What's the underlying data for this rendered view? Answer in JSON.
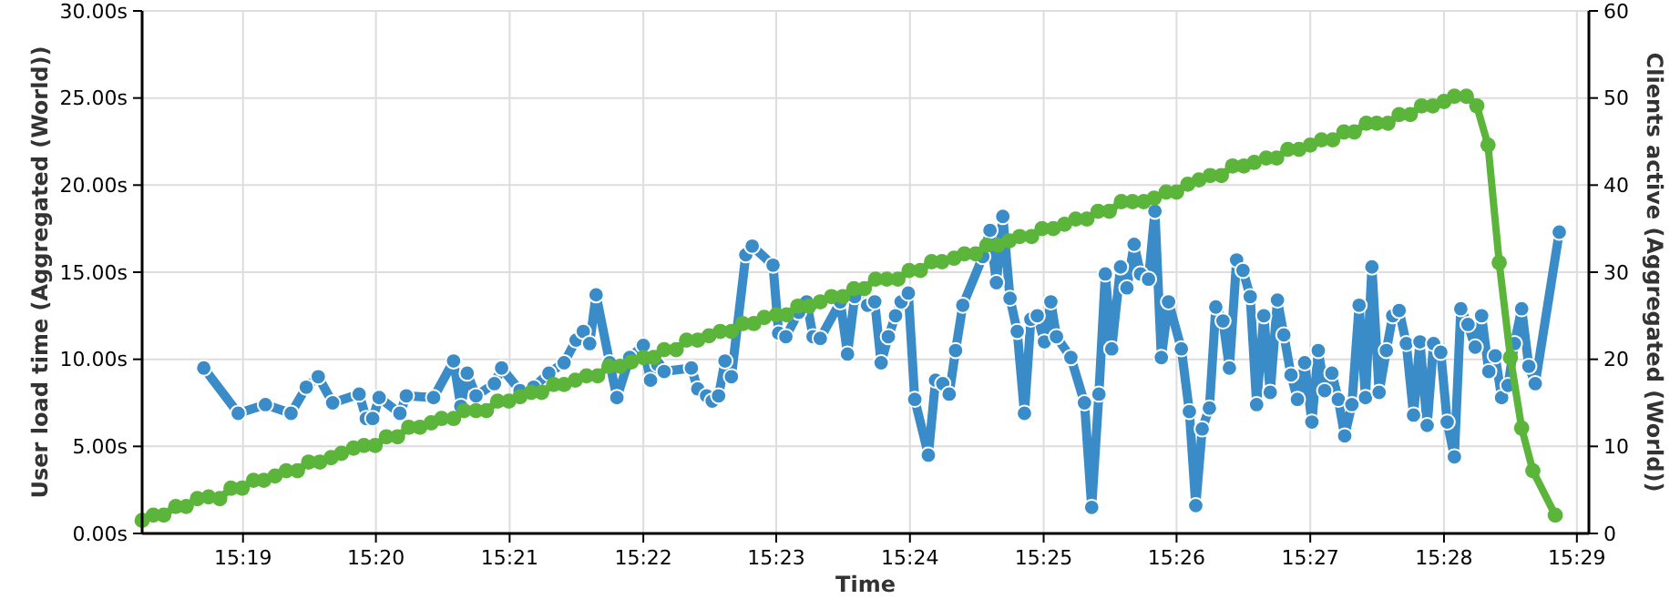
{
  "chart_data": {
    "type": "line",
    "xlabel": "Time",
    "ylabel": "User load time (Aggregated (World))",
    "y2label": "Clients active (Aggregated (World))",
    "grid": true,
    "marker": "circle",
    "line_style": "solid",
    "xlim": [
      15.3041,
      15.4848
    ],
    "xticks": [
      {
        "value": 15.3167,
        "label": "15:19"
      },
      {
        "value": 15.3333,
        "label": "15:20"
      },
      {
        "value": 15.35,
        "label": "15:21"
      },
      {
        "value": 15.3667,
        "label": "15:22"
      },
      {
        "value": 15.3833,
        "label": "15:23"
      },
      {
        "value": 15.4,
        "label": "15:24"
      },
      {
        "value": 15.4167,
        "label": "15:25"
      },
      {
        "value": 15.4333,
        "label": "15:26"
      },
      {
        "value": 15.45,
        "label": "15:27"
      },
      {
        "value": 15.4667,
        "label": "15:28"
      },
      {
        "value": 15.4833,
        "label": "15:29"
      }
    ],
    "ylim": [
      0,
      30
    ],
    "yticks": [
      {
        "value": 0,
        "label": "0.00s"
      },
      {
        "value": 5,
        "label": "5.00s"
      },
      {
        "value": 10,
        "label": "10.00s"
      },
      {
        "value": 15,
        "label": "15.00s"
      },
      {
        "value": 20,
        "label": "20.00s"
      },
      {
        "value": 25,
        "label": "25.00s"
      },
      {
        "value": 30,
        "label": "30.00s"
      }
    ],
    "y2lim": [
      0,
      60
    ],
    "y2ticks": [
      0,
      10,
      20,
      30,
      40,
      50,
      60
    ],
    "series": [
      {
        "color": "#3a8cc8",
        "x": [
          15.3118,
          15.3161,
          15.3195,
          15.3227,
          15.3246,
          15.3261,
          15.3279,
          15.3312,
          15.3321,
          15.3329,
          15.3337,
          15.3363,
          15.3371,
          15.3405,
          15.343,
          15.3439,
          15.3447,
          15.3458,
          15.3481,
          15.349,
          15.3513,
          15.353,
          15.3549,
          15.3568,
          15.3583,
          15.3592,
          15.36,
          15.3608,
          15.3625,
          15.3634,
          15.365,
          15.3667,
          15.3676,
          15.3685,
          15.3693,
          15.3727,
          15.3735,
          15.3746,
          15.3753,
          15.3761,
          15.3769,
          15.3777,
          15.3795,
          15.3803,
          15.3829,
          15.3836,
          15.3845,
          15.3861,
          15.3871,
          15.3879,
          15.3888,
          15.3913,
          15.3922,
          15.3931,
          15.3947,
          15.3956,
          15.3964,
          15.3973,
          15.3982,
          15.3989,
          15.3998,
          15.4006,
          15.4023,
          15.4032,
          15.4041,
          15.4049,
          15.4057,
          15.4066,
          15.4091,
          15.41,
          15.4108,
          15.4116,
          15.4125,
          15.4134,
          15.4143,
          15.4151,
          15.4159,
          15.4168,
          15.4176,
          15.4183,
          15.4201,
          15.4218,
          15.4227,
          15.4236,
          15.4244,
          15.4252,
          15.4263,
          15.4271,
          15.428,
          15.4288,
          15.4298,
          15.4306,
          15.4314,
          15.4323,
          15.4339,
          15.4349,
          15.4357,
          15.4365,
          15.4374,
          15.4382,
          15.4391,
          15.4399,
          15.4408,
          15.4416,
          15.4425,
          15.4433,
          15.4442,
          15.445,
          15.4459,
          15.4467,
          15.4476,
          15.4484,
          15.4493,
          15.4502,
          15.451,
          15.4518,
          15.4527,
          15.4535,
          15.4543,
          15.4552,
          15.4561,
          15.4569,
          15.4577,
          15.4586,
          15.4595,
          15.4603,
          15.4611,
          15.462,
          15.4629,
          15.4637,
          15.4646,
          15.4654,
          15.4663,
          15.4671,
          15.468,
          15.4688,
          15.4697,
          15.4706,
          15.4714,
          15.4723,
          15.4731,
          15.4739,
          15.4747,
          15.4755,
          15.4764,
          15.4773,
          15.4781,
          15.4811
        ],
        "values": [
          9.5,
          6.9,
          7.4,
          6.9,
          8.4,
          9.0,
          7.5,
          8.0,
          6.6,
          6.6,
          7.8,
          6.9,
          7.9,
          7.8,
          9.9,
          7.3,
          9.2,
          7.9,
          8.6,
          9.5,
          8.2,
          8.4,
          9.2,
          9.8,
          11.1,
          11.6,
          10.9,
          13.7,
          9.8,
          7.8,
          10.1,
          10.8,
          8.8,
          9.7,
          9.3,
          9.5,
          8.3,
          7.9,
          7.6,
          7.9,
          9.9,
          9.0,
          16.0,
          16.5,
          15.4,
          11.5,
          11.3,
          12.7,
          13.3,
          11.3,
          11.2,
          13.3,
          10.3,
          13.6,
          13.1,
          13.3,
          9.8,
          11.3,
          12.5,
          13.3,
          13.8,
          7.7,
          4.5,
          8.8,
          8.6,
          8.0,
          10.5,
          13.1,
          15.9,
          17.4,
          14.4,
          18.2,
          13.5,
          11.6,
          6.9,
          12.3,
          12.5,
          11.0,
          13.3,
          11.3,
          10.1,
          7.5,
          1.5,
          8.0,
          14.9,
          10.6,
          15.3,
          14.1,
          16.6,
          14.9,
          14.6,
          18.5,
          10.1,
          13.3,
          10.6,
          7.0,
          1.6,
          6.0,
          7.2,
          13.0,
          12.2,
          9.5,
          15.7,
          15.1,
          13.6,
          7.4,
          12.5,
          8.1,
          13.4,
          11.4,
          9.1,
          7.7,
          9.8,
          6.4,
          10.5,
          8.2,
          9.2,
          7.7,
          5.6,
          7.4,
          13.1,
          7.8,
          15.3,
          8.1,
          10.5,
          12.5,
          12.8,
          10.9,
          6.8,
          11.0,
          6.2,
          10.9,
          10.4,
          6.4,
          4.4,
          12.9,
          12.0,
          10.7,
          12.5,
          9.3,
          10.2,
          7.8,
          8.5,
          10.9,
          12.9,
          9.6,
          8.6,
          17.3
        ]
      },
      {
        "color": "#5ab53a",
        "axis": "y2",
        "x": [
          15.3041,
          15.3055,
          15.3068,
          15.3083,
          15.3096,
          15.311,
          15.3124,
          15.3138,
          15.3152,
          15.3166,
          15.318,
          15.3193,
          15.3207,
          15.3221,
          15.3235,
          15.3249,
          15.3263,
          15.3277,
          15.329,
          15.3305,
          15.3318,
          15.3332,
          15.3346,
          15.336,
          15.3374,
          15.3388,
          15.3402,
          15.3415,
          15.343,
          15.3443,
          15.3458,
          15.3471,
          15.3485,
          15.3499,
          15.3513,
          15.3527,
          15.354,
          15.3555,
          15.3568,
          15.3582,
          15.3596,
          15.361,
          15.3624,
          15.3638,
          15.3652,
          15.3667,
          15.368,
          15.3693,
          15.3708,
          15.3721,
          15.3735,
          15.3749,
          15.3763,
          15.3777,
          15.3791,
          15.3805,
          15.3818,
          15.3833,
          15.3846,
          15.386,
          15.3874,
          15.3888,
          15.3902,
          15.3916,
          15.393,
          15.3943,
          15.3957,
          15.3971,
          15.3985,
          15.3999,
          15.4013,
          15.4027,
          15.404,
          15.4055,
          15.4068,
          15.4082,
          15.4096,
          15.411,
          15.4124,
          15.4137,
          15.4152,
          15.4165,
          15.4179,
          15.4193,
          15.4207,
          15.4221,
          15.4235,
          15.4249,
          15.4264,
          15.4278,
          15.4292,
          15.4305,
          15.432,
          15.4333,
          15.4347,
          15.4361,
          15.4375,
          15.4389,
          15.4403,
          15.4417,
          15.443,
          15.4445,
          15.4458,
          15.4472,
          15.4486,
          15.45,
          15.4514,
          15.4528,
          15.4542,
          15.4555,
          15.457,
          15.4583,
          15.4597,
          15.4611,
          15.4625,
          15.4639,
          15.4653,
          15.4667,
          15.468,
          15.4695,
          15.4708,
          15.4722,
          15.4736,
          15.475,
          15.4764,
          15.4778,
          15.4806
        ],
        "values": [
          1.5,
          2.1,
          2.1,
          3.1,
          3.1,
          4.0,
          4.2,
          4.0,
          5.2,
          5.2,
          6.1,
          6.1,
          6.6,
          7.2,
          7.2,
          8.2,
          8.2,
          8.7,
          9.2,
          9.8,
          10.1,
          10.1,
          11.1,
          11.1,
          12.2,
          12.2,
          12.7,
          13.2,
          13.2,
          14.1,
          14.1,
          14.1,
          15.2,
          15.2,
          15.7,
          16.2,
          16.2,
          17.1,
          17.1,
          17.6,
          18.1,
          18.1,
          19.2,
          19.2,
          19.7,
          20.2,
          20.2,
          21.1,
          21.1,
          22.2,
          22.2,
          22.7,
          23.2,
          23.2,
          24.1,
          24.1,
          24.8,
          25.1,
          25.1,
          26.1,
          26.1,
          26.6,
          27.2,
          27.2,
          28.1,
          28.1,
          29.2,
          29.2,
          29.2,
          30.2,
          30.2,
          31.2,
          31.2,
          31.6,
          32.1,
          32.1,
          33.1,
          33.1,
          33.6,
          34.1,
          34.1,
          35.0,
          35.0,
          35.5,
          36.1,
          36.1,
          37.0,
          37.0,
          38.1,
          38.1,
          38.1,
          38.5,
          39.2,
          39.2,
          40.1,
          40.6,
          41.1,
          41.1,
          42.2,
          42.2,
          42.6,
          43.1,
          43.1,
          44.1,
          44.1,
          44.6,
          45.2,
          45.2,
          46.1,
          46.1,
          47.1,
          47.1,
          47.1,
          48.1,
          48.1,
          49.1,
          49.1,
          49.6,
          50.2,
          50.2,
          49.1,
          44.6,
          31.1,
          20.2,
          12.1,
          7.2,
          2.1
        ]
      }
    ]
  }
}
